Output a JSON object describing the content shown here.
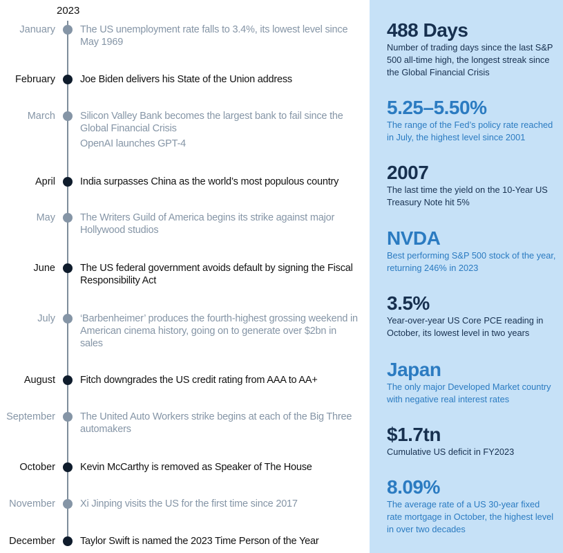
{
  "year": "2023",
  "timeline": [
    {
      "month": "January",
      "events": [
        "The US unemployment rate falls to 3.4%, its lowest level since May 1969"
      ]
    },
    {
      "month": "February",
      "events": [
        "Joe Biden delivers his State of the Union address"
      ]
    },
    {
      "month": "March",
      "events": [
        "Silicon Valley Bank becomes the largest bank to fail since the Global Financial Crisis",
        "OpenAI launches GPT-4"
      ]
    },
    {
      "month": "April",
      "events": [
        "India surpasses China as the world’s most populous country"
      ]
    },
    {
      "month": "May",
      "events": [
        "The Writers Guild of America begins its strike against major Hollywood studios"
      ]
    },
    {
      "month": "June",
      "events": [
        "The US federal government avoids default by signing the Fiscal Responsibility Act"
      ]
    },
    {
      "month": "July",
      "events": [
        "‘Barbenheimer’ produces the fourth-highest grossing weekend in American cinema history, going on to generate over $2bn in sales"
      ]
    },
    {
      "month": "August",
      "events": [
        "Fitch downgrades the US credit rating from AAA to AA+"
      ]
    },
    {
      "month": "September",
      "events": [
        "The United Auto Workers strike begins at each of the Big Three automakers"
      ]
    },
    {
      "month": "October",
      "events": [
        "Kevin McCarthy is removed as Speaker of The House"
      ]
    },
    {
      "month": "November",
      "events": [
        "Xi Jinping visits the US for the first time since 2017"
      ]
    },
    {
      "month": "December",
      "events": [
        "Taylor Swift is named the 2023 Time Person of the Year"
      ]
    }
  ],
  "stats": [
    {
      "value": "488 Days",
      "description": "Number of trading days since the last S&P 500 all-time high, the longest streak since the Global Financial Crisis"
    },
    {
      "value": "5.25–5.50%",
      "description": "The range of the Fed’s policy rate reached in July, the highest level since 2001"
    },
    {
      "value": "2007",
      "description": "The last time the yield on the 10-Year US Treasury Note hit 5%"
    },
    {
      "value": "NVDA",
      "description": "Best performing S&P 500 stock of the year, returning 246% in 2023"
    },
    {
      "value": "3.5%",
      "description": "Year-over-year US Core PCE reading in October, its lowest level in two years"
    },
    {
      "value": "Japan",
      "description": "The only major Developed Market country with negative real interest rates"
    },
    {
      "value": "$1.7tn",
      "description": "Cumulative US deficit in FY2023"
    },
    {
      "value": "8.09%",
      "description": "The average rate of a US 30-year fixed rate mortgage in October, the highest level in over two decades"
    }
  ]
}
